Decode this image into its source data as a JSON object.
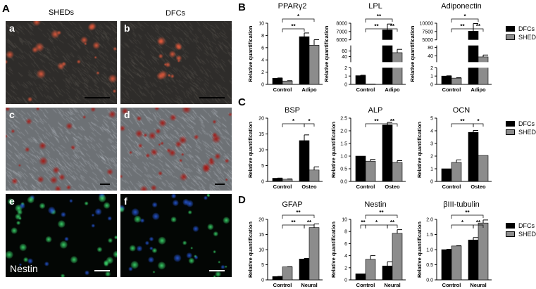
{
  "panel_A": {
    "letter": "A",
    "columns": [
      "SHEDs",
      "DFCs"
    ],
    "images": [
      {
        "sub": "a",
        "kind": "adipogenic staining"
      },
      {
        "sub": "b",
        "kind": "adipogenic staining"
      },
      {
        "sub": "c",
        "kind": "osteogenic staining"
      },
      {
        "sub": "d",
        "kind": "osteogenic staining"
      },
      {
        "sub": "e",
        "kind": "immunofluorescence",
        "stain": "Nestin"
      },
      {
        "sub": "f",
        "kind": "immunofluorescence"
      }
    ]
  },
  "legend": {
    "series": [
      "DFCs",
      "SHEDs"
    ],
    "colors": {
      "DFCs": "#000000",
      "SHEDs": "#8c8c8c"
    }
  },
  "chart_data": [
    {
      "panel": "B",
      "type": "bar",
      "title": "PPARγ2",
      "ylabel": "Relative quantification",
      "categories": [
        "Control",
        "Adipo"
      ],
      "ylim": [
        0,
        10
      ],
      "yticks": [
        0,
        2,
        4,
        6,
        8,
        10
      ],
      "series": [
        {
          "name": "DFCs",
          "values": [
            1.0,
            7.8
          ],
          "errors": [
            0.05,
            0.6
          ]
        },
        {
          "name": "SHEDs",
          "values": [
            0.55,
            6.4
          ],
          "errors": [
            0.05,
            0.9
          ]
        }
      ],
      "significance": [
        {
          "a": "C",
          "b": "t0",
          "label": "**",
          "level": 0
        },
        {
          "a": "C",
          "b": "t1",
          "label": "*",
          "level": 1
        }
      ]
    },
    {
      "panel": "B",
      "type": "bar",
      "title": "LPL",
      "ylabel": "Relative quantification",
      "categories": [
        "Control",
        "Adipo"
      ],
      "broken_axis": [
        {
          "range": [
            0,
            2
          ],
          "ticks": [
            0,
            1,
            2
          ]
        },
        {
          "range": [
            20,
            80
          ],
          "ticks": [
            40,
            60
          ]
        },
        {
          "range": [
            6000,
            8000
          ],
          "ticks": [
            6000,
            7000,
            8000
          ]
        }
      ],
      "series": [
        {
          "name": "DFCs",
          "values": [
            1.05,
            7200
          ],
          "errors": [
            0.05,
            700
          ]
        },
        {
          "name": "SHEDs",
          "values": [
            0.05,
            54
          ],
          "errors": [
            0,
            12
          ]
        }
      ],
      "significance": [
        {
          "a": "C",
          "b": "t0",
          "label": "**",
          "level": 0
        },
        {
          "a": "t0",
          "b": "t1",
          "label": "**",
          "level": 0
        },
        {
          "a": "C",
          "b": "T",
          "label": "**",
          "level": 1
        }
      ]
    },
    {
      "panel": "B",
      "type": "bar",
      "title": "Adiponectin",
      "ylabel": "Relative quantification",
      "categories": [
        "Control",
        "Adipo"
      ],
      "broken_axis": [
        {
          "range": [
            0,
            2
          ],
          "ticks": [
            0,
            1,
            2
          ]
        },
        {
          "range": [
            10,
            90
          ],
          "ticks": [
            40,
            80
          ]
        },
        {
          "range": [
            5000,
            10000
          ],
          "ticks": [
            5000,
            7500,
            10000
          ]
        }
      ],
      "series": [
        {
          "name": "DFCs",
          "values": [
            1.0,
            7600
          ],
          "errors": [
            0.03,
            2300
          ]
        },
        {
          "name": "SHEDs",
          "values": [
            0.75,
            35
          ],
          "errors": [
            0.05,
            9
          ]
        }
      ],
      "significance": [
        {
          "a": "C",
          "b": "t0",
          "label": "**",
          "level": 0
        },
        {
          "a": "t0",
          "b": "t1",
          "label": "**",
          "level": 0
        },
        {
          "a": "C",
          "b": "T",
          "label": "*",
          "level": 1
        }
      ]
    },
    {
      "panel": "C",
      "type": "bar",
      "title": "BSP",
      "ylabel": "Relative quantification",
      "categories": [
        "Control",
        "Osteo"
      ],
      "ylim": [
        0,
        20
      ],
      "yticks": [
        0,
        5,
        10,
        15,
        20
      ],
      "series": [
        {
          "name": "DFCs",
          "values": [
            1.0,
            12.9
          ],
          "errors": [
            0.05,
            1.8
          ]
        },
        {
          "name": "SHEDs",
          "values": [
            0.7,
            3.6
          ],
          "errors": [
            0.1,
            1.0
          ]
        }
      ],
      "significance": [
        {
          "a": "C",
          "b": "t0",
          "label": "*",
          "level": 0
        },
        {
          "a": "t0",
          "b": "t1",
          "label": "*",
          "level": 0
        }
      ]
    },
    {
      "panel": "C",
      "type": "bar",
      "title": "ALP",
      "ylabel": "Relative quantification",
      "categories": [
        "Control",
        "Osteo"
      ],
      "ylim": [
        0,
        2.5
      ],
      "yticks": [
        "0.0",
        "0.5",
        "1.0",
        "1.5",
        "2.0",
        "2.5"
      ],
      "series": [
        {
          "name": "DFCs",
          "values": [
            1.0,
            2.23
          ],
          "errors": [
            0,
            0.1
          ]
        },
        {
          "name": "SHEDs",
          "values": [
            0.8,
            0.75
          ],
          "errors": [
            0.07,
            0.07
          ]
        }
      ],
      "significance": [
        {
          "a": "C",
          "b": "t0",
          "label": "**",
          "level": 0
        },
        {
          "a": "t0",
          "b": "t1",
          "label": "**",
          "level": 0
        }
      ]
    },
    {
      "panel": "C",
      "type": "bar",
      "title": "OCN",
      "ylabel": "Relative quantification",
      "categories": [
        "Control",
        "Osteo"
      ],
      "ylim": [
        0,
        5
      ],
      "yticks": [
        0,
        1,
        2,
        3,
        4,
        5
      ],
      "series": [
        {
          "name": "DFCs",
          "values": [
            1.0,
            3.88
          ],
          "errors": [
            0,
            0.15
          ]
        },
        {
          "name": "SHEDs",
          "values": [
            1.5,
            2.05
          ],
          "errors": [
            0.2,
            0
          ]
        }
      ],
      "significance": [
        {
          "a": "C",
          "b": "t0",
          "label": "**",
          "level": 0
        },
        {
          "a": "t0",
          "b": "t1",
          "label": "*",
          "level": 0
        }
      ]
    },
    {
      "panel": "D",
      "type": "bar",
      "title": "GFAP",
      "ylabel": "Relative quantification",
      "categories": [
        "Control",
        "Neural"
      ],
      "ylim": [
        0,
        20
      ],
      "yticks": [
        0,
        5,
        10,
        15,
        20
      ],
      "series": [
        {
          "name": "DFCs",
          "values": [
            1.1,
            6.9
          ],
          "errors": [
            0.05,
            0.2
          ]
        },
        {
          "name": "SHEDs",
          "values": [
            4.3,
            17.3
          ],
          "errors": [
            0.05,
            1.2
          ]
        }
      ],
      "significance": [
        {
          "a": "C",
          "b": "t0",
          "label": "**",
          "level": 0
        },
        {
          "a": "t0",
          "b": "t1",
          "label": "**",
          "level": 0
        },
        {
          "a": "C",
          "b": "t1",
          "label": "**",
          "level": 1
        }
      ]
    },
    {
      "panel": "D",
      "type": "bar",
      "title": "Nestin",
      "ylabel": "Relative quantification",
      "categories": [
        "Control",
        "Neural"
      ],
      "ylim": [
        0,
        10
      ],
      "yticks": [
        0,
        2,
        4,
        6,
        8,
        10
      ],
      "series": [
        {
          "name": "DFCs",
          "values": [
            1.0,
            2.3
          ],
          "errors": [
            0,
            0.7
          ]
        },
        {
          "name": "SHEDs",
          "values": [
            3.4,
            7.7
          ],
          "errors": [
            0.6,
            0.6
          ]
        }
      ],
      "significance": [
        {
          "a": "c0",
          "b": "C",
          "label": "**",
          "level": 0
        },
        {
          "a": "C",
          "b": "t0",
          "label": "*",
          "level": 0
        },
        {
          "a": "t0",
          "b": "t1",
          "label": "**",
          "level": 0
        },
        {
          "a": "C",
          "b": "t1",
          "label": "**",
          "level": 1
        }
      ]
    },
    {
      "panel": "D",
      "type": "bar",
      "title": "βIII-tubulin",
      "ylabel": "Relative quantification",
      "categories": [
        "Control",
        "Neural"
      ],
      "ylim": [
        0,
        2.0
      ],
      "yticks": [
        "0.0",
        "0.5",
        "1.0",
        "1.5",
        "2.0"
      ],
      "series": [
        {
          "name": "DFCs",
          "values": [
            1.0,
            1.32
          ],
          "errors": [
            0.01,
            0.08
          ]
        },
        {
          "name": "SHEDs",
          "values": [
            1.12,
            1.88
          ],
          "errors": [
            0.01,
            0.1
          ]
        }
      ],
      "significance": [
        {
          "a": "C",
          "b": "t0",
          "label": "*",
          "level": 0
        },
        {
          "a": "t0",
          "b": "t1",
          "label": "**",
          "level": 0
        },
        {
          "a": "C",
          "b": "t1",
          "label": "**",
          "level": 1
        }
      ]
    }
  ]
}
